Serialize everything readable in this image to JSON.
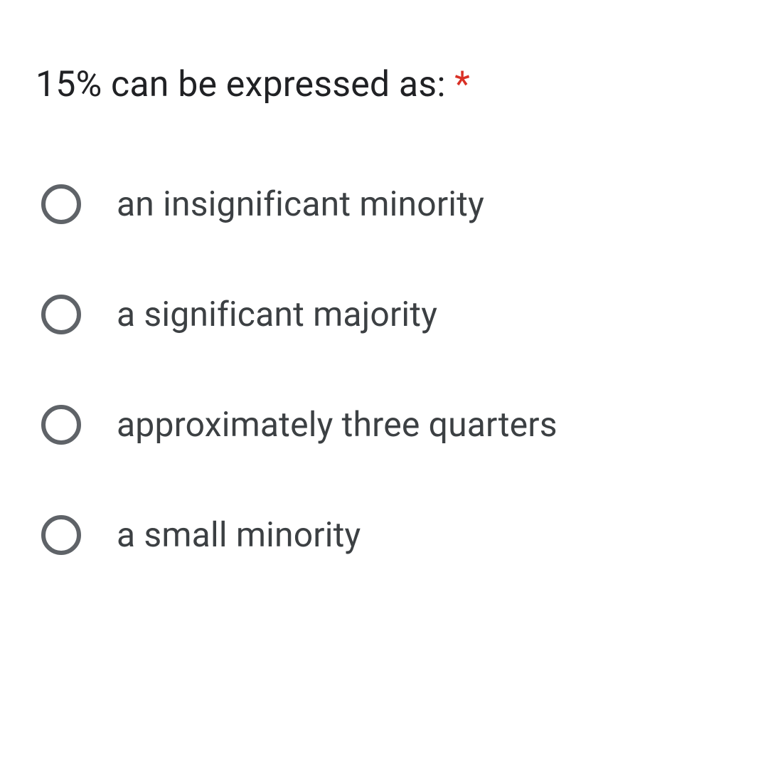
{
  "question": {
    "text": "15% can be expressed as: ",
    "required": true,
    "asterisk": "*"
  },
  "options": [
    {
      "label": "an insignificant minority"
    },
    {
      "label": "a significant majority"
    },
    {
      "label": "approximately three quarters"
    },
    {
      "label": "a small minority"
    }
  ],
  "colors": {
    "text_primary": "#202124",
    "text_option": "#3c4043",
    "radio_border": "#5f6368",
    "required": "#d93025",
    "background": "#ffffff"
  }
}
